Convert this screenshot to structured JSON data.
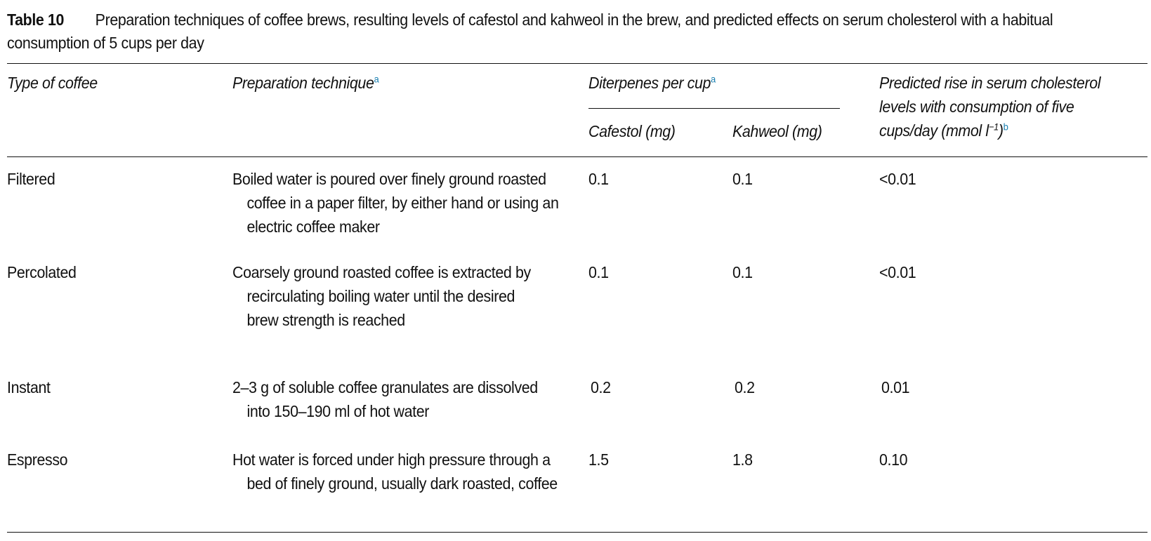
{
  "caption": {
    "label": "Table 10",
    "text": "Preparation techniques of coffee brews, resulting levels of cafestol and kahweol in the brew, and predicted effects on serum cholesterol with a habitual consumption of 5 cups per day"
  },
  "headers": {
    "type": "Type of coffee",
    "preparation": "Preparation technique",
    "preparation_note": "a",
    "diterpenes": "Diterpenes per cup",
    "diterpenes_note": "a",
    "cafestol": "Cafestol (mg)",
    "kahweol": "Kahweol (mg)",
    "predicted_line1": "Predicted rise in serum cholesterol",
    "predicted_line2": "levels with consumption of five",
    "predicted_line3_a": "cups/day (mmol l",
    "predicted_exp": "−1",
    "predicted_line3_b": ")",
    "predicted_note": "b"
  },
  "rows": [
    {
      "type": "Filtered",
      "preparation": "Boiled water is poured over finely ground roasted coffee in a paper filter, by either hand or using an electric coffee maker",
      "cafestol": "0.1",
      "kahweol": "0.1",
      "predicted": "<0.01"
    },
    {
      "type": "Percolated",
      "preparation": "Coarsely ground roasted coffee is extracted by recirculating boiling water until the desired brew strength is reached",
      "cafestol": "0.1",
      "kahweol": "0.1",
      "predicted": "<0.01"
    },
    {
      "type": "Instant",
      "preparation": "2–3 g of soluble coffee granulates are dissolved into 150–190 ml of hot water",
      "cafestol": "0.2",
      "kahweol": "0.2",
      "predicted": "0.01"
    },
    {
      "type": "Espresso",
      "preparation": "Hot water is forced under high pressure through a bed of finely ground, usually dark roasted, coffee",
      "cafestol": "1.5",
      "kahweol": "1.8",
      "predicted": "0.10"
    }
  ]
}
